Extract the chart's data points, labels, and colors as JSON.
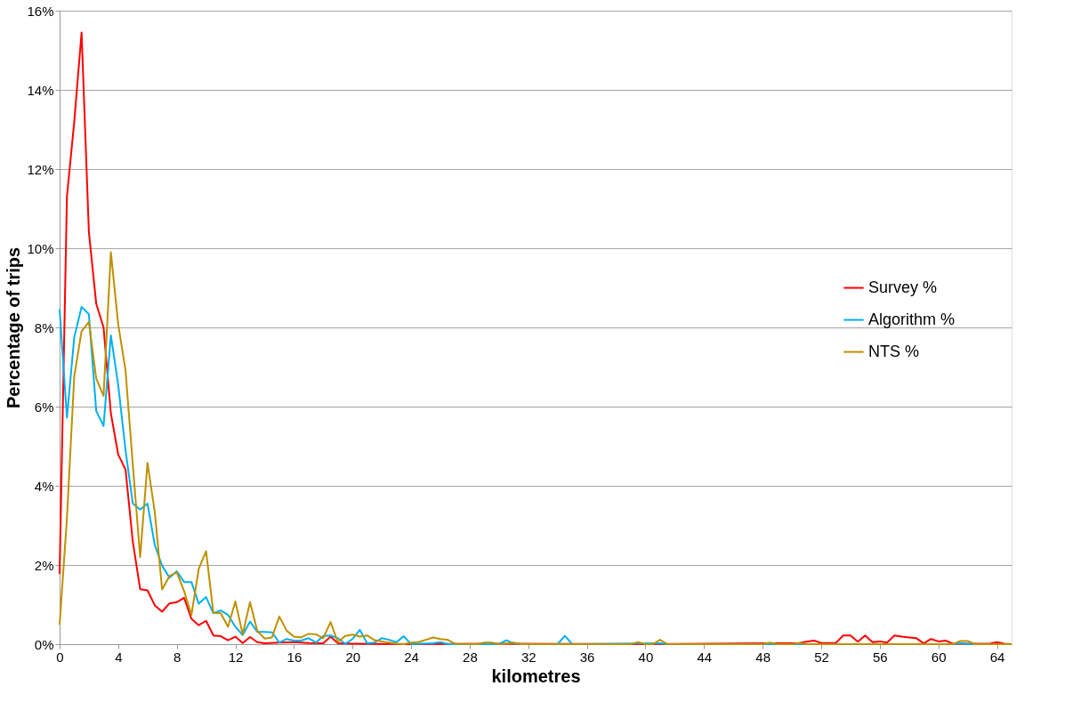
{
  "chart_data": {
    "type": "line",
    "xlabel": "kilometres",
    "ylabel": "Percentage of trips",
    "xlim": [
      0,
      65
    ],
    "xticks": [
      0,
      4,
      8,
      12,
      16,
      20,
      24,
      28,
      32,
      36,
      40,
      44,
      48,
      52,
      56,
      60,
      64
    ],
    "ylim": [
      0,
      16
    ],
    "yticks": [
      {
        "value": 0,
        "label": "0%"
      },
      {
        "value": 2,
        "label": "2%"
      },
      {
        "value": 4,
        "label": "4%"
      },
      {
        "value": 6,
        "label": "6%"
      },
      {
        "value": 8,
        "label": "8%"
      },
      {
        "value": 10,
        "label": "10%"
      },
      {
        "value": 12,
        "label": "12%"
      },
      {
        "value": 14,
        "label": "14%"
      },
      {
        "value": 16,
        "label": "16%"
      }
    ],
    "grid": "y",
    "legend": "right",
    "marker": "none",
    "line_style": "solid",
    "series": [
      {
        "name": "Survey %",
        "color": "#ff0000",
        "x": [
          0,
          0.5,
          1,
          1.5,
          2,
          2.5,
          3,
          3.5,
          4,
          4.5,
          5,
          5.5,
          6,
          6.5,
          7,
          7.5,
          8,
          8.5,
          9,
          9.5,
          10,
          10.5,
          11,
          11.5,
          12,
          12.5,
          13,
          13.5,
          14,
          15,
          16,
          17,
          18,
          18.5,
          19,
          20,
          24,
          30,
          40,
          50.5,
          51,
          51.5,
          52,
          53,
          53.5,
          54,
          54.5,
          55,
          55.5,
          56,
          56.5,
          57,
          57.5,
          58,
          58.5,
          59,
          59.5,
          60,
          60.5,
          61,
          63.5,
          64,
          64.5,
          65
        ],
        "values": [
          1.77,
          11.3,
          13.2,
          15.45,
          10.4,
          8.6,
          8.0,
          5.83,
          4.79,
          4.41,
          2.58,
          1.39,
          1.36,
          0.98,
          0.82,
          1.03,
          1.06,
          1.17,
          0.64,
          0.48,
          0.59,
          0.22,
          0.2,
          0.1,
          0.19,
          0.03,
          0.18,
          0.05,
          0.02,
          0.04,
          0.05,
          0.03,
          0.02,
          0.19,
          0.02,
          0.01,
          0,
          0.01,
          0,
          0.03,
          0.06,
          0.09,
          0.03,
          0.03,
          0.22,
          0.22,
          0.06,
          0.22,
          0.05,
          0.07,
          0.04,
          0.22,
          0.19,
          0.17,
          0.15,
          0.02,
          0.13,
          0.07,
          0.09,
          0.01,
          0.01,
          0.05,
          0.01,
          0
        ]
      },
      {
        "name": "Algorithm %",
        "color": "#00b0f0",
        "x": [
          0,
          0.5,
          1,
          1.5,
          2,
          2.5,
          3,
          3.5,
          4,
          4.5,
          5,
          5.5,
          6,
          6.5,
          7,
          7.5,
          8,
          8.5,
          9,
          9.5,
          10,
          10.5,
          11,
          11.5,
          12,
          12.5,
          13,
          13.5,
          14,
          14.5,
          15,
          15.5,
          16,
          16.5,
          17,
          17.5,
          18,
          18.5,
          19,
          19.5,
          20,
          20.5,
          21,
          21.5,
          22,
          22.5,
          23,
          23.5,
          24,
          25.5,
          26,
          26.5,
          30,
          30.5,
          31,
          31.5,
          34,
          34.5,
          35,
          41,
          41.5,
          61,
          61.5,
          62,
          65
        ],
        "values": [
          8.46,
          5.72,
          7.75,
          8.52,
          8.33,
          5.89,
          5.51,
          7.8,
          6.55,
          4.9,
          3.55,
          3.4,
          3.55,
          2.5,
          1.98,
          1.68,
          1.84,
          1.57,
          1.57,
          1.02,
          1.19,
          0.78,
          0.85,
          0.74,
          0.44,
          0.23,
          0.57,
          0.31,
          0.31,
          0.3,
          0.04,
          0.13,
          0.09,
          0.09,
          0.15,
          0.04,
          0.21,
          0.22,
          0.15,
          0.01,
          0.13,
          0.36,
          0.02,
          0.04,
          0.15,
          0.11,
          0.05,
          0.2,
          0,
          0.02,
          0.05,
          0,
          0,
          0.1,
          0.02,
          0,
          0,
          0.21,
          0,
          0.02,
          0,
          0,
          0.03,
          0,
          0
        ]
      },
      {
        "name": "NTS %",
        "color": "#bf9000",
        "x": [
          0,
          0.5,
          1,
          1.5,
          2,
          2.5,
          3,
          3.5,
          4,
          4.5,
          5,
          5.5,
          6,
          6.5,
          7,
          7.5,
          8,
          8.5,
          9,
          9.5,
          10,
          10.5,
          11,
          11.5,
          12,
          12.5,
          13,
          13.5,
          14,
          14.5,
          15,
          15.5,
          16,
          16.5,
          17,
          17.5,
          18,
          18.5,
          19,
          19.5,
          20,
          20.5,
          21,
          21.5,
          22,
          22.5,
          23,
          23.5,
          24,
          24.5,
          25,
          25.5,
          26,
          26.5,
          27,
          28.5,
          29,
          29.5,
          30,
          30.5,
          31,
          31.5,
          39,
          39.5,
          40,
          40.5,
          41,
          41.5,
          48,
          48.5,
          49,
          50,
          50.5,
          51,
          61,
          61.5,
          62,
          62.5,
          65
        ],
        "values": [
          0.49,
          3.18,
          6.77,
          7.9,
          8.14,
          6.71,
          6.27,
          9.9,
          8.08,
          6.92,
          4.52,
          2.2,
          4.58,
          3.33,
          1.38,
          1.72,
          1.81,
          1.34,
          0.74,
          1.9,
          2.35,
          0.79,
          0.78,
          0.44,
          1.08,
          0.25,
          1.06,
          0.33,
          0.14,
          0.17,
          0.7,
          0.34,
          0.19,
          0.17,
          0.26,
          0.25,
          0.15,
          0.56,
          0.05,
          0.21,
          0.24,
          0.19,
          0.22,
          0.1,
          0.07,
          0.04,
          0.01,
          0,
          0.04,
          0.05,
          0.11,
          0.17,
          0.13,
          0.11,
          0.01,
          0,
          0.04,
          0.04,
          0,
          0.01,
          0.04,
          0,
          0,
          0.05,
          0,
          0,
          0.11,
          0,
          0,
          0.04,
          0,
          0,
          0.03,
          0,
          0,
          0.08,
          0.08,
          0,
          0
        ]
      }
    ]
  }
}
